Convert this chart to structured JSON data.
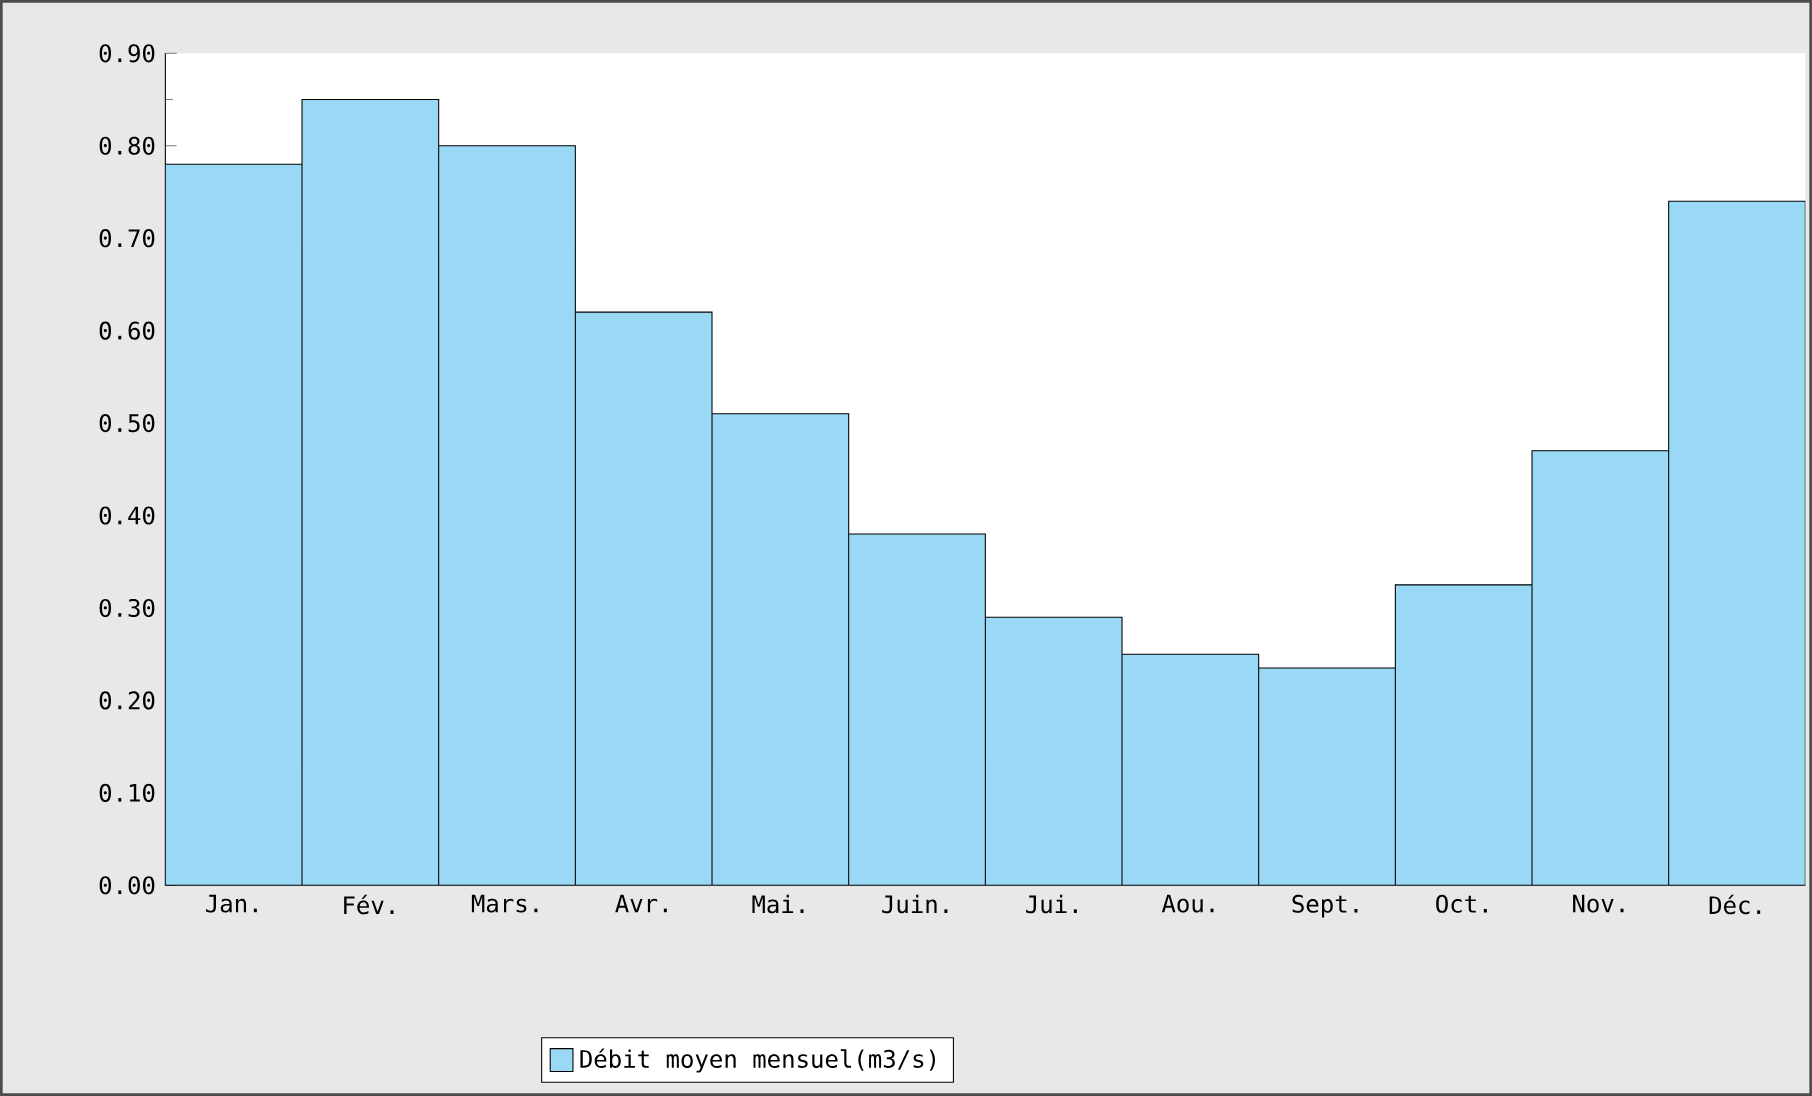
{
  "chart_data": {
    "type": "bar",
    "categories": [
      "Jan.",
      "Fév.",
      "Mars.",
      "Avr.",
      "Mai.",
      "Juin.",
      "Jui.",
      "Aou.",
      "Sept.",
      "Oct.",
      "Nov.",
      "Déc."
    ],
    "series": [
      {
        "name": "Débit moyen mensuel(m3/s)",
        "color": "#99d9f5",
        "values": [
          0.78,
          0.85,
          0.8,
          0.62,
          0.51,
          0.38,
          0.29,
          0.25,
          0.235,
          0.325,
          0.47,
          0.74
        ]
      }
    ],
    "ylim": [
      0,
      0.9
    ],
    "yticks": [
      {
        "value": 0,
        "label": "0.00"
      },
      {
        "value": 0.1,
        "label": "0.10"
      },
      {
        "value": 0.2,
        "label": "0.20"
      },
      {
        "value": 0.3,
        "label": "0.30"
      },
      {
        "value": 0.4,
        "label": "0.40"
      },
      {
        "value": 0.5,
        "label": "0.50"
      },
      {
        "value": 0.6,
        "label": "0.60"
      },
      {
        "value": 0.7,
        "label": "0.70"
      },
      {
        "value": 0.8,
        "label": "0.80"
      },
      {
        "value": 0.9,
        "label": "0.90"
      }
    ],
    "legend": "bottom",
    "grid": false
  }
}
